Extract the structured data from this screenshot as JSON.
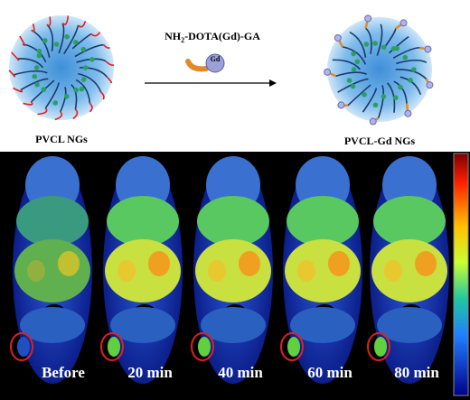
{
  "top": {
    "reagent": {
      "prefix": "NH",
      "subscript": "2",
      "suffix": "-DOTA(Gd)-GA"
    },
    "icon_label": "Gd",
    "left_label": "PVCL NGs",
    "right_label": "PVCL-Gd NGs"
  },
  "mri": {
    "panels": [
      {
        "label": "Before"
      },
      {
        "label": "20 min"
      },
      {
        "label": "40 min"
      },
      {
        "label": "60 min"
      },
      {
        "label": "80 min"
      }
    ]
  }
}
